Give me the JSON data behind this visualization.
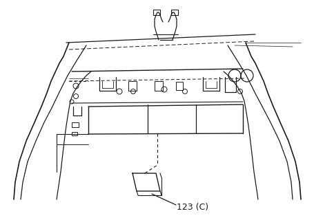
{
  "bg_color": "#ffffff",
  "line_color": "#1a1a1a",
  "label_text": "123 (C)",
  "label_fontsize": 9,
  "fig_width": 4.56,
  "fig_height": 3.2,
  "dpi": 100
}
